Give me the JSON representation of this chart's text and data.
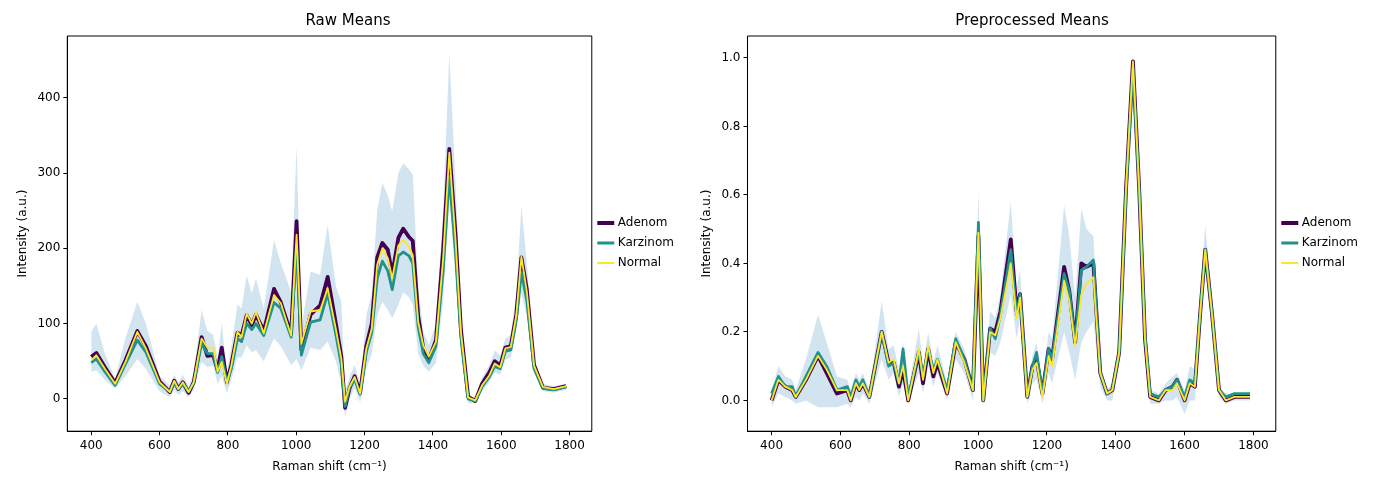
{
  "chart_data": [
    {
      "type": "line",
      "title": "Raw Means",
      "xlabel": "Raman shift (cm⁻¹)",
      "ylabel": "Intensity (a.u.)",
      "legend": "right",
      "xlim": [
        330,
        1865
      ],
      "ylim": [
        -43,
        482
      ],
      "xticks": [
        400,
        600,
        800,
        1000,
        1200,
        1400,
        1600,
        1800
      ],
      "yticks": [
        0,
        100,
        200,
        300,
        400
      ],
      "x": [
        400,
        415,
        440,
        470,
        500,
        535,
        560,
        600,
        630,
        643,
        655,
        668,
        685,
        700,
        723,
        740,
        757,
        770,
        782,
        797,
        810,
        828,
        840,
        855,
        870,
        882,
        905,
        935,
        955,
        985,
        1001,
        1015,
        1042,
        1070,
        1092,
        1116,
        1132,
        1143,
        1156,
        1171,
        1187,
        1205,
        1221,
        1237,
        1252,
        1268,
        1281,
        1299,
        1313,
        1330,
        1341,
        1357,
        1372,
        1388,
        1409,
        1430,
        1448,
        1466,
        1482,
        1503,
        1524,
        1544,
        1565,
        1581,
        1597,
        1612,
        1628,
        1644,
        1659,
        1675,
        1696,
        1722,
        1753,
        1790
      ],
      "series": [
        {
          "name": "Adenom",
          "color": "#440154",
          "values": [
            56,
            61,
            42,
            21,
            51,
            90,
            70,
            23,
            9,
            24,
            13,
            22,
            8,
            22,
            82,
            57,
            58,
            38,
            68,
            22,
            45,
            88,
            84,
            111,
            98,
            112,
            90,
            146,
            128,
            86,
            236,
            65,
            112,
            124,
            162,
            100,
            56,
            -12,
            14,
            30,
            8,
            70,
            100,
            188,
            207,
            198,
            165,
            214,
            226,
            215,
            210,
            110,
            66,
            52,
            78,
            198,
            332,
            220,
            92,
            3,
            -3,
            20,
            35,
            50,
            44,
            68,
            70,
            112,
            188,
            145,
            45,
            15,
            13,
            17
          ]
        },
        {
          "name": "Karzinom",
          "color": "#21918c",
          "values": [
            48,
            53,
            36,
            18,
            46,
            78,
            62,
            20,
            10,
            22,
            13,
            20,
            10,
            21,
            74,
            60,
            60,
            35,
            56,
            22,
            40,
            80,
            76,
            100,
            92,
            100,
            84,
            128,
            120,
            82,
            205,
            58,
            102,
            105,
            140,
            85,
            45,
            -10,
            15,
            26,
            6,
            62,
            88,
            160,
            183,
            170,
            145,
            190,
            195,
            190,
            180,
            95,
            60,
            48,
            70,
            170,
            295,
            195,
            82,
            0,
            -3,
            16,
            29,
            43,
            40,
            63,
            65,
            105,
            168,
            130,
            40,
            14,
            12,
            16
          ]
        },
        {
          "name": "Normal",
          "color": "#fde725",
          "values": [
            51,
            58,
            40,
            20,
            49,
            89,
            67,
            22,
            9,
            24,
            13,
            22,
            9,
            22,
            80,
            68,
            68,
            36,
            49,
            20,
            44,
            89,
            82,
            113,
            100,
            115,
            87,
            138,
            127,
            84,
            218,
            73,
            116,
            118,
            147,
            93,
            53,
            -4,
            16,
            29,
            7,
            67,
            93,
            178,
            200,
            187,
            160,
            204,
            211,
            202,
            191,
            102,
            71,
            56,
            76,
            187,
            327,
            213,
            89,
            2,
            -2,
            18,
            31,
            47,
            42,
            67,
            69,
            111,
            189,
            142,
            44,
            16,
            13,
            17
          ],
          "lower": [
            36,
            38,
            25,
            14,
            30,
            53,
            40,
            10,
            2,
            12,
            5,
            10,
            2,
            12,
            49,
            42,
            44,
            20,
            30,
            7,
            25,
            55,
            55,
            71,
            62,
            65,
            50,
            80,
            70,
            45,
            53,
            38,
            68,
            65,
            76,
            50,
            20,
            -24,
            0,
            14,
            -5,
            40,
            60,
            110,
            129,
            118,
            107,
            125,
            142,
            135,
            125,
            60,
            44,
            36,
            48,
            130,
            270,
            160,
            60,
            -6,
            -6,
            10,
            22,
            35,
            32,
            52,
            55,
            90,
            140,
            110,
            34,
            10,
            8,
            12
          ],
          "upper": [
            89,
            100,
            60,
            27,
            80,
            129,
            100,
            30,
            18,
            32,
            22,
            32,
            16,
            35,
            118,
            90,
            85,
            55,
            100,
            35,
            70,
            125,
            120,
            164,
            140,
            160,
            120,
            211,
            180,
            142,
            336,
            95,
            169,
            165,
            231,
            150,
            129,
            9,
            30,
            45,
            20,
            111,
            140,
            250,
            287,
            270,
            249,
            300,
            313,
            305,
            298,
            150,
            89,
            72,
            100,
            250,
            458,
            290,
            120,
            4,
            2,
            28,
            45,
            64,
            58,
            80,
            85,
            140,
            256,
            180,
            49,
            20,
            17,
            20
          ]
        }
      ]
    },
    {
      "type": "line",
      "title": "Preprocessed Means",
      "xlabel": "Raman shift (cm⁻¹)",
      "ylabel": "Intensity (a.u.)",
      "legend": "right",
      "xlim": [
        330,
        1865
      ],
      "ylim": [
        -0.09,
        1.064
      ],
      "xticks": [
        400,
        600,
        800,
        1000,
        1200,
        1400,
        1600,
        1800
      ],
      "yticks": [
        {
          "value": 0,
          "label": "0.0"
        },
        0.2,
        0.4,
        0.6,
        0.8,
        {
          "value": 1,
          "label": "1.0"
        }
      ],
      "x": [
        400,
        420,
        440,
        460,
        470,
        500,
        535,
        560,
        590,
        620,
        630,
        645,
        655,
        665,
        684,
        720,
        740,
        755,
        770,
        782,
        797,
        828,
        840,
        855,
        870,
        882,
        910,
        935,
        960,
        985,
        1001,
        1015,
        1035,
        1050,
        1065,
        1095,
        1112,
        1122,
        1143,
        1158,
        1170,
        1187,
        1205,
        1215,
        1250,
        1265,
        1282,
        1300,
        1315,
        1335,
        1355,
        1375,
        1390,
        1410,
        1430,
        1450,
        1468,
        1485,
        1500,
        1525,
        1545,
        1565,
        1578,
        1600,
        1615,
        1630,
        1645,
        1660,
        1680,
        1700,
        1720,
        1745,
        1770,
        1790
      ],
      "series": [
        {
          "name": "Adenom",
          "color": "#440154",
          "values": [
            0.0,
            0.06,
            0.04,
            0.03,
            0.01,
            0.06,
            0.13,
            0.08,
            0.02,
            0.03,
            0.0,
            0.05,
            0.03,
            0.05,
            0.01,
            0.2,
            0.11,
            0.11,
            0.04,
            0.09,
            0.0,
            0.14,
            0.05,
            0.15,
            0.07,
            0.11,
            0.02,
            0.17,
            0.12,
            0.03,
            0.48,
            0.0,
            0.21,
            0.2,
            0.26,
            0.47,
            0.26,
            0.31,
            0.01,
            0.1,
            0.12,
            0.02,
            0.15,
            0.12,
            0.39,
            0.32,
            0.17,
            0.4,
            0.39,
            0.4,
            0.08,
            0.02,
            0.03,
            0.14,
            0.62,
            0.99,
            0.62,
            0.18,
            0.01,
            0.0,
            0.03,
            0.04,
            0.06,
            0.0,
            0.05,
            0.04,
            0.25,
            0.44,
            0.25,
            0.03,
            0.0,
            0.01,
            0.01,
            0.01
          ]
        },
        {
          "name": "Karzinom",
          "color": "#21918c",
          "values": [
            0.02,
            0.07,
            0.04,
            0.04,
            0.01,
            0.07,
            0.14,
            0.1,
            0.03,
            0.04,
            0.01,
            0.06,
            0.04,
            0.06,
            0.01,
            0.2,
            0.1,
            0.11,
            0.05,
            0.15,
            0.01,
            0.14,
            0.07,
            0.15,
            0.09,
            0.12,
            0.03,
            0.18,
            0.12,
            0.03,
            0.52,
            0.0,
            0.21,
            0.18,
            0.25,
            0.44,
            0.25,
            0.31,
            0.01,
            0.1,
            0.14,
            0.02,
            0.15,
            0.12,
            0.37,
            0.32,
            0.17,
            0.38,
            0.39,
            0.41,
            0.08,
            0.02,
            0.03,
            0.14,
            0.61,
            0.97,
            0.62,
            0.19,
            0.02,
            0.01,
            0.03,
            0.04,
            0.06,
            0.01,
            0.06,
            0.05,
            0.25,
            0.44,
            0.25,
            0.03,
            0.01,
            0.02,
            0.02,
            0.02
          ]
        },
        {
          "name": "Normal",
          "color": "#fde725",
          "values": [
            0.0,
            0.06,
            0.04,
            0.03,
            0.01,
            0.06,
            0.13,
            0.09,
            0.03,
            0.03,
            0.0,
            0.05,
            0.03,
            0.05,
            0.01,
            0.2,
            0.11,
            0.12,
            0.05,
            0.1,
            0.0,
            0.15,
            0.06,
            0.16,
            0.08,
            0.12,
            0.02,
            0.17,
            0.11,
            0.03,
            0.49,
            0.0,
            0.2,
            0.19,
            0.24,
            0.4,
            0.24,
            0.3,
            0.01,
            0.09,
            0.11,
            0.01,
            0.13,
            0.1,
            0.35,
            0.29,
            0.16,
            0.31,
            0.34,
            0.36,
            0.08,
            0.02,
            0.03,
            0.14,
            0.62,
            0.99,
            0.62,
            0.18,
            0.01,
            0.0,
            0.03,
            0.03,
            0.05,
            0.0,
            0.05,
            0.04,
            0.25,
            0.44,
            0.25,
            0.03,
            0.0,
            0.01,
            0.01,
            0.01
          ],
          "lower": [
            -0.02,
            0.02,
            0.01,
            0.0,
            -0.01,
            0.0,
            -0.02,
            -0.02,
            -0.02,
            -0.01,
            -0.02,
            0.01,
            0.0,
            0.02,
            -0.01,
            0.12,
            0.06,
            0.08,
            0.01,
            0.05,
            -0.01,
            0.08,
            0.02,
            0.1,
            0.04,
            0.08,
            0.0,
            0.12,
            0.08,
            0.0,
            0.38,
            -0.01,
            0.14,
            0.13,
            0.17,
            0.31,
            0.18,
            0.24,
            -0.01,
            0.05,
            0.06,
            -0.01,
            0.08,
            0.05,
            0.2,
            0.14,
            0.06,
            0.17,
            0.2,
            0.23,
            0.04,
            0.0,
            0.0,
            0.1,
            0.55,
            0.95,
            0.55,
            0.13,
            -0.01,
            -0.01,
            0.0,
            0.0,
            0.01,
            -0.04,
            0.0,
            0.0,
            0.2,
            0.39,
            0.2,
            0.01,
            -0.01,
            0.0,
            0.0,
            0.0
          ],
          "upper": [
            0.03,
            0.1,
            0.07,
            0.06,
            0.03,
            0.12,
            0.25,
            0.17,
            0.07,
            0.06,
            0.03,
            0.08,
            0.06,
            0.08,
            0.03,
            0.29,
            0.15,
            0.16,
            0.09,
            0.17,
            0.03,
            0.21,
            0.1,
            0.2,
            0.11,
            0.16,
            0.05,
            0.2,
            0.15,
            0.06,
            0.61,
            0.02,
            0.26,
            0.24,
            0.31,
            0.58,
            0.33,
            0.38,
            0.03,
            0.13,
            0.17,
            0.05,
            0.2,
            0.18,
            0.57,
            0.48,
            0.3,
            0.56,
            0.5,
            0.48,
            0.11,
            0.03,
            0.05,
            0.18,
            0.68,
            1.01,
            0.68,
            0.24,
            0.03,
            0.02,
            0.05,
            0.07,
            0.08,
            0.03,
            0.1,
            0.09,
            0.3,
            0.51,
            0.3,
            0.04,
            0.02,
            0.02,
            0.02,
            0.02
          ]
        }
      ]
    }
  ]
}
